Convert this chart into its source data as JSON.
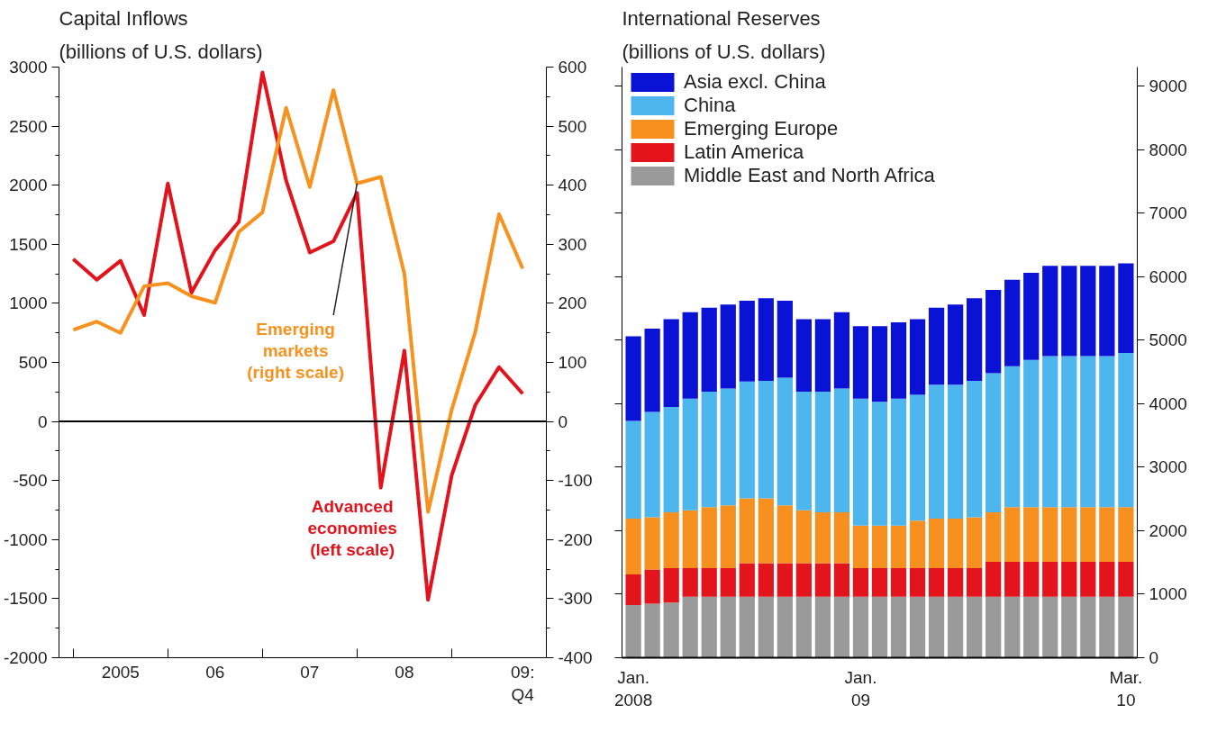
{
  "chart_data": [
    {
      "type": "line",
      "title": "Capital Inflows",
      "subtitle": "(billions of U.S. dollars)",
      "categories": [
        null,
        null,
        "2005",
        null,
        null,
        null,
        "06",
        null,
        null,
        null,
        "07",
        null,
        null,
        null,
        "08",
        null,
        null,
        null,
        null,
        "09:\nQ4"
      ],
      "series": [
        {
          "name": "Advanced economies (left scale)",
          "color": "#e3121b",
          "values": [
            1375,
            1200,
            1360,
            900,
            2015,
            1090,
            1450,
            1690,
            2955,
            2040,
            1430,
            1525,
            1935,
            -560,
            600,
            -1510,
            -455,
            140,
            460,
            235
          ]
        },
        {
          "name": "Emerging markets (right scale)",
          "color": "#f7921e",
          "axis": "y2",
          "values": [
            155,
            169,
            150,
            229,
            234,
            212,
            201,
            321,
            354,
            531,
            397,
            561,
            403,
            414,
            250,
            -153,
            20,
            152,
            351,
            259
          ]
        }
      ],
      "ylim": [
        -2000,
        3000
      ],
      "yticks": [
        -2000,
        {
          "value": -1750,
          "label": null
        },
        -1500,
        {
          "value": -1250,
          "label": null
        },
        -1000,
        {
          "value": -750,
          "label": null
        },
        -500,
        {
          "value": -250,
          "label": null
        },
        0,
        {
          "value": 250,
          "label": null
        },
        500,
        {
          "value": 750,
          "label": null
        },
        1000,
        {
          "value": 1250,
          "label": null
        },
        1500,
        {
          "value": 1750,
          "label": null
        },
        2000,
        {
          "value": 2250,
          "label": null
        },
        2500,
        {
          "value": 2750,
          "label": null
        },
        3000
      ],
      "y2lim": [
        -400,
        600
      ],
      "y2ticks": [
        -400,
        {
          "value": -350,
          "label": null
        },
        -300,
        {
          "value": -250,
          "label": null
        },
        -200,
        {
          "value": -150,
          "label": null
        },
        -100,
        {
          "value": -50,
          "label": null
        },
        0,
        {
          "value": 50,
          "label": null
        },
        100,
        {
          "value": 150,
          "label": null
        },
        200,
        {
          "value": 250,
          "label": null
        },
        300,
        {
          "value": 350,
          "label": null
        },
        400,
        {
          "value": 450,
          "label": null
        },
        500,
        {
          "value": 550,
          "label": null
        },
        600
      ],
      "ref_lines": [
        {
          "axis": "y",
          "value": 0,
          "color": "#000000"
        }
      ],
      "grid": false,
      "legend": false,
      "line_style": "solid",
      "marker": "none"
    },
    {
      "type": "bar",
      "stacked": true,
      "title": "International Reserves",
      "subtitle": "(billions of U.S. dollars)",
      "categories": [
        "Jan.\n2008",
        null,
        null,
        null,
        null,
        null,
        null,
        null,
        null,
        null,
        null,
        null,
        "Jan.\n09",
        null,
        null,
        null,
        null,
        null,
        null,
        null,
        null,
        null,
        null,
        null,
        null,
        null,
        "Mar.\n10"
      ],
      "series": [
        {
          "name": "Middle East and North Africa",
          "color": "#9a9a9a",
          "values": [
            830,
            850,
            870,
            960,
            960,
            960,
            960,
            960,
            960,
            960,
            960,
            960,
            960,
            960,
            960,
            960,
            960,
            960,
            960,
            960,
            960,
            960,
            960,
            960,
            960,
            960,
            960
          ]
        },
        {
          "name": "Latin America",
          "color": "#e3141c",
          "values": [
            480,
            540,
            540,
            450,
            450,
            450,
            530,
            530,
            530,
            530,
            530,
            530,
            450,
            450,
            450,
            450,
            450,
            450,
            450,
            550,
            550,
            550,
            550,
            550,
            550,
            550,
            550
          ]
        },
        {
          "name": "Emerging Europe",
          "color": "#f7901e",
          "values": [
            880,
            820,
            880,
            910,
            960,
            990,
            1020,
            1020,
            910,
            830,
            800,
            800,
            670,
            670,
            670,
            750,
            780,
            780,
            800,
            780,
            860,
            860,
            860,
            860,
            860,
            860,
            860
          ]
        },
        {
          "name": "China",
          "color": "#4db6ef",
          "values": [
            1540,
            1660,
            1660,
            1760,
            1820,
            1840,
            1840,
            1850,
            2010,
            1870,
            1900,
            1950,
            2000,
            1950,
            2000,
            1980,
            2110,
            2110,
            2150,
            2190,
            2220,
            2320,
            2380,
            2380,
            2380,
            2380,
            2430
          ]
        },
        {
          "name": "Asia excl. China",
          "color": "#0a12d6",
          "values": [
            1330,
            1310,
            1380,
            1360,
            1320,
            1320,
            1270,
            1300,
            1210,
            1140,
            1140,
            1200,
            1140,
            1190,
            1200,
            1190,
            1210,
            1260,
            1300,
            1310,
            1360,
            1370,
            1420,
            1420,
            1420,
            1420,
            1410
          ]
        }
      ],
      "ylim": [
        0,
        9300
      ],
      "yticks": [
        0,
        1000,
        2000,
        3000,
        4000,
        5000,
        6000,
        7000,
        8000,
        9000
      ],
      "grid": false,
      "legend": "top left"
    }
  ]
}
